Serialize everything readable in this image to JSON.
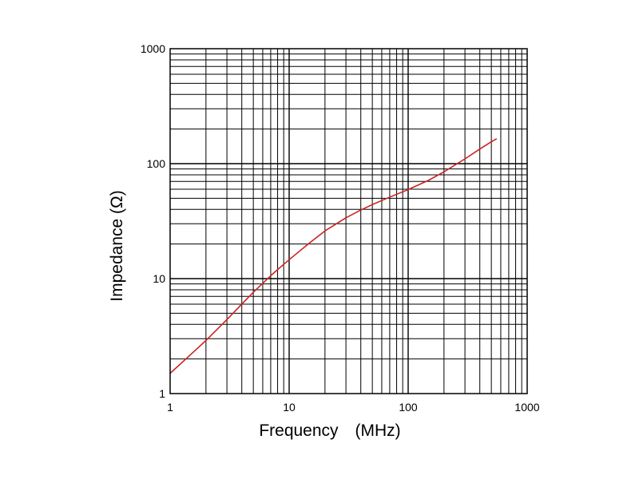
{
  "chart_data": {
    "type": "line",
    "title": "",
    "xlabel": "Frequency　(MHz)",
    "ylabel": "Impedance (Ω)",
    "xscale": "log",
    "yscale": "log",
    "xlim": [
      1,
      1000
    ],
    "ylim": [
      1,
      1000
    ],
    "grid": true,
    "x_ticks": [
      {
        "value": 1,
        "label": "1"
      },
      {
        "value": 10,
        "label": "10"
      },
      {
        "value": 100,
        "label": "100"
      },
      {
        "value": 1000,
        "label": "1000"
      }
    ],
    "y_ticks": [
      {
        "value": 1,
        "label": "1"
      },
      {
        "value": 10,
        "label": "10"
      },
      {
        "value": 100,
        "label": "100"
      },
      {
        "value": 1000,
        "label": "1000"
      }
    ],
    "series": [
      {
        "color": "#cc2222",
        "x": [
          1,
          1.5,
          2,
          3,
          4,
          5,
          6,
          7,
          8,
          10,
          15,
          20,
          30,
          40,
          50,
          60,
          80,
          100,
          150,
          200,
          300,
          400,
          500,
          550
        ],
        "y": [
          1.5,
          2.2,
          2.9,
          4.4,
          6.0,
          7.6,
          9.1,
          10.6,
          12.0,
          14.6,
          20.6,
          26.0,
          33.8,
          39.5,
          44.0,
          47.8,
          54.2,
          59.5,
          72.0,
          85.0,
          110.0,
          134.0,
          155.0,
          164.0
        ]
      }
    ]
  }
}
